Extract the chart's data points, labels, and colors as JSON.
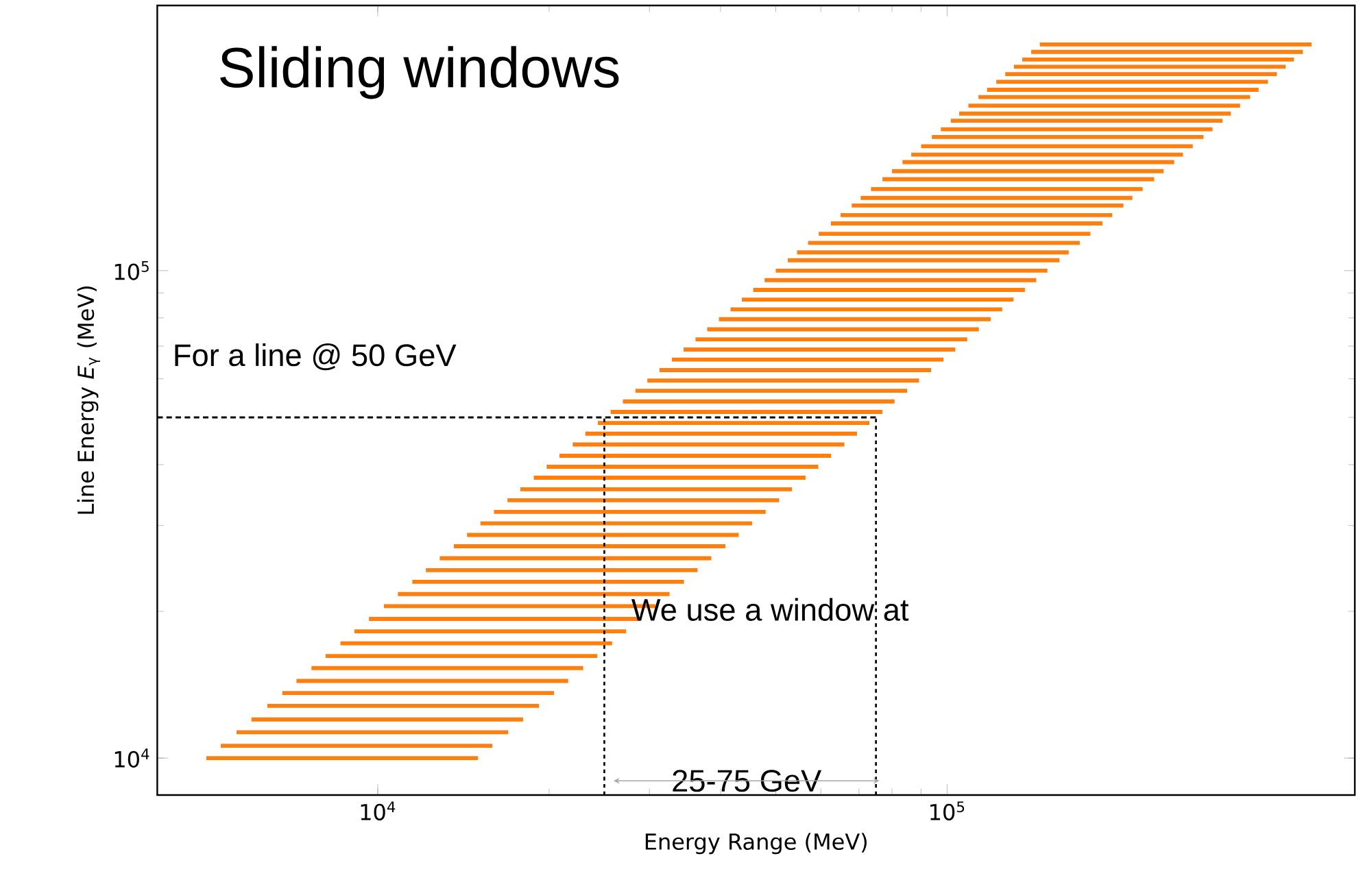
{
  "chart_data": {
    "type": "line",
    "title": "Sliding windows",
    "xlabel": "Energy Range (MeV)",
    "ylabel": "Line Energy *E*$_{γ}$ (MeV)",
    "log": "xy",
    "xlim": [
      4100,
      520000
    ],
    "ylim": [
      8400,
      350000
    ],
    "xticks": [
      {
        "value": 10000,
        "label": "10$^{4}$"
      },
      {
        "value": 100000,
        "label": "10$^{5}$"
      }
    ],
    "yticks": [
      {
        "value": 10000,
        "label": "10$^{4}$"
      },
      {
        "value": 100000,
        "label": "10$^{5}$"
      }
    ],
    "color": "#ff7f0e",
    "line_style": "solid",
    "annotations": [
      "For a line @ 50 GeV",
      "We use a window at",
      "25-75 GeV"
    ],
    "series": [
      {
        "x": [
          5000,
          15000
        ],
        "values": [
          10000,
          10000
        ]
      },
      {
        "x": [
          5300,
          15900
        ],
        "values": [
          10600,
          10600
        ]
      },
      {
        "x": [
          5650,
          16950
        ],
        "values": [
          11300,
          11300
        ]
      },
      {
        "x": [
          6000,
          18000
        ],
        "values": [
          12000,
          12000
        ]
      },
      {
        "x": [
          6400,
          19200
        ],
        "values": [
          12800,
          12800
        ]
      },
      {
        "x": [
          6800,
          20400
        ],
        "values": [
          13600,
          13600
        ]
      },
      {
        "x": [
          7200,
          21600
        ],
        "values": [
          14400,
          14400
        ]
      },
      {
        "x": [
          7650,
          22950
        ],
        "values": [
          15300,
          15300
        ]
      },
      {
        "x": [
          8100,
          24300
        ],
        "values": [
          16200,
          16200
        ]
      },
      {
        "x": [
          8600,
          25800
        ],
        "values": [
          17200,
          17200
        ]
      },
      {
        "x": [
          9100,
          27300
        ],
        "values": [
          18200,
          18200
        ]
      },
      {
        "x": [
          9650,
          28950
        ],
        "values": [
          19300,
          19300
        ]
      },
      {
        "x": [
          10250,
          30750
        ],
        "values": [
          20500,
          20500
        ]
      },
      {
        "x": [
          10850,
          32550
        ],
        "values": [
          21700,
          21700
        ]
      },
      {
        "x": [
          11500,
          34500
        ],
        "values": [
          23000,
          23000
        ]
      },
      {
        "x": [
          12150,
          36450
        ],
        "values": [
          24300,
          24300
        ]
      },
      {
        "x": [
          12850,
          38550
        ],
        "values": [
          25700,
          25700
        ]
      },
      {
        "x": [
          13600,
          40800
        ],
        "values": [
          27200,
          27200
        ]
      },
      {
        "x": [
          14350,
          43050
        ],
        "values": [
          28700,
          28700
        ]
      },
      {
        "x": [
          15150,
          45450
        ],
        "values": [
          30300,
          30300
        ]
      },
      {
        "x": [
          16000,
          48000
        ],
        "values": [
          32000,
          32000
        ]
      },
      {
        "x": [
          16900,
          50700
        ],
        "values": [
          33800,
          33800
        ]
      },
      {
        "x": [
          17800,
          53400
        ],
        "values": [
          35600,
          35600
        ]
      },
      {
        "x": [
          18800,
          56400
        ],
        "values": [
          37600,
          37600
        ]
      },
      {
        "x": [
          19800,
          59400
        ],
        "values": [
          39600,
          39600
        ]
      },
      {
        "x": [
          20850,
          62550
        ],
        "values": [
          41700,
          41700
        ]
      },
      {
        "x": [
          22000,
          66000
        ],
        "values": [
          44000,
          44000
        ]
      },
      {
        "x": [
          23150,
          69450
        ],
        "values": [
          46300,
          46300
        ]
      },
      {
        "x": [
          24350,
          73050
        ],
        "values": [
          48700,
          48700
        ]
      },
      {
        "x": [
          25650,
          76950
        ],
        "values": [
          51300,
          51300
        ]
      },
      {
        "x": [
          26950,
          80850
        ],
        "values": [
          53900,
          53900
        ]
      },
      {
        "x": [
          28350,
          85050
        ],
        "values": [
          56700,
          56700
        ]
      },
      {
        "x": [
          29750,
          89250
        ],
        "values": [
          59500,
          59500
        ]
      },
      {
        "x": [
          31250,
          93750
        ],
        "values": [
          62500,
          62500
        ]
      },
      {
        "x": [
          32850,
          98550
        ],
        "values": [
          65700,
          65700
        ]
      },
      {
        "x": [
          34450,
          103350
        ],
        "values": [
          68900,
          68900
        ]
      },
      {
        "x": [
          36150,
          108450
        ],
        "values": [
          72300,
          72300
        ]
      },
      {
        "x": [
          37900,
          113700
        ],
        "values": [
          75800,
          75800
        ]
      },
      {
        "x": [
          39750,
          119250
        ],
        "values": [
          79500,
          79500
        ]
      },
      {
        "x": [
          41650,
          124950
        ],
        "values": [
          83300,
          83300
        ]
      },
      {
        "x": [
          43600,
          130800
        ],
        "values": [
          87200,
          87200
        ]
      },
      {
        "x": [
          45650,
          136950
        ],
        "values": [
          91300,
          91300
        ]
      },
      {
        "x": [
          47800,
          143400
        ],
        "values": [
          95600,
          95600
        ]
      },
      {
        "x": [
          50000,
          150000
        ],
        "values": [
          100000,
          100000
        ]
      },
      {
        "x": [
          52500,
          157500
        ],
        "values": [
          105000,
          105000
        ]
      },
      {
        "x": [
          54500,
          163500
        ],
        "values": [
          109000,
          109000
        ]
      },
      {
        "x": [
          57000,
          171000
        ],
        "values": [
          114000,
          114000
        ]
      },
      {
        "x": [
          59500,
          178500
        ],
        "values": [
          119000,
          119000
        ]
      },
      {
        "x": [
          62500,
          187500
        ],
        "values": [
          125000,
          125000
        ]
      },
      {
        "x": [
          65000,
          195000
        ],
        "values": [
          130000,
          130000
        ]
      },
      {
        "x": [
          68000,
          204000
        ],
        "values": [
          136000,
          136000
        ]
      },
      {
        "x": [
          70500,
          211500
        ],
        "values": [
          141000,
          141000
        ]
      },
      {
        "x": [
          73500,
          220500
        ],
        "values": [
          147000,
          147000
        ]
      },
      {
        "x": [
          77000,
          231000
        ],
        "values": [
          154000,
          154000
        ]
      },
      {
        "x": [
          80000,
          240000
        ],
        "values": [
          160000,
          160000
        ]
      },
      {
        "x": [
          83500,
          250500
        ],
        "values": [
          167000,
          167000
        ]
      },
      {
        "x": [
          86500,
          259500
        ],
        "values": [
          173000,
          173000
        ]
      },
      {
        "x": [
          90000,
          270000
        ],
        "values": [
          180000,
          180000
        ]
      },
      {
        "x": [
          94000,
          282000
        ],
        "values": [
          188000,
          188000
        ]
      },
      {
        "x": [
          97500,
          292500
        ],
        "values": [
          195000,
          195000
        ]
      },
      {
        "x": [
          101500,
          304500
        ],
        "values": [
          203000,
          203000
        ]
      },
      {
        "x": [
          105000,
          315000
        ],
        "values": [
          210000,
          210000
        ]
      },
      {
        "x": [
          109000,
          327000
        ],
        "values": [
          218000,
          218000
        ]
      },
      {
        "x": [
          113500,
          340500
        ],
        "values": [
          227000,
          227000
        ]
      },
      {
        "x": [
          117500,
          352500
        ],
        "values": [
          235000,
          235000
        ]
      },
      {
        "x": [
          122000,
          366000
        ],
        "values": [
          244000,
          244000
        ]
      },
      {
        "x": [
          126500,
          379500
        ],
        "values": [
          253000,
          253000
        ]
      },
      {
        "x": [
          131000,
          393000
        ],
        "values": [
          262000,
          262000
        ]
      },
      {
        "x": [
          135500,
          406500
        ],
        "values": [
          271000,
          271000
        ]
      },
      {
        "x": [
          140500,
          421500
        ],
        "values": [
          281000,
          281000
        ]
      },
      {
        "x": [
          145500,
          436500
        ],
        "values": [
          291000,
          291000
        ]
      },
      {
        "x": [
          4100,
          75000
        ],
        "values": [
          50000,
          50000
        ],
        "color": "#000000",
        "line_style": "dashed"
      },
      {
        "x": [
          25000,
          25000
        ],
        "values": [
          8400,
          50000
        ],
        "color": "#000000",
        "line_style": "dotted"
      },
      {
        "x": [
          75000,
          75000
        ],
        "values": [
          8400,
          50000
        ],
        "color": "#000000",
        "line_style": "dotted"
      }
    ]
  }
}
